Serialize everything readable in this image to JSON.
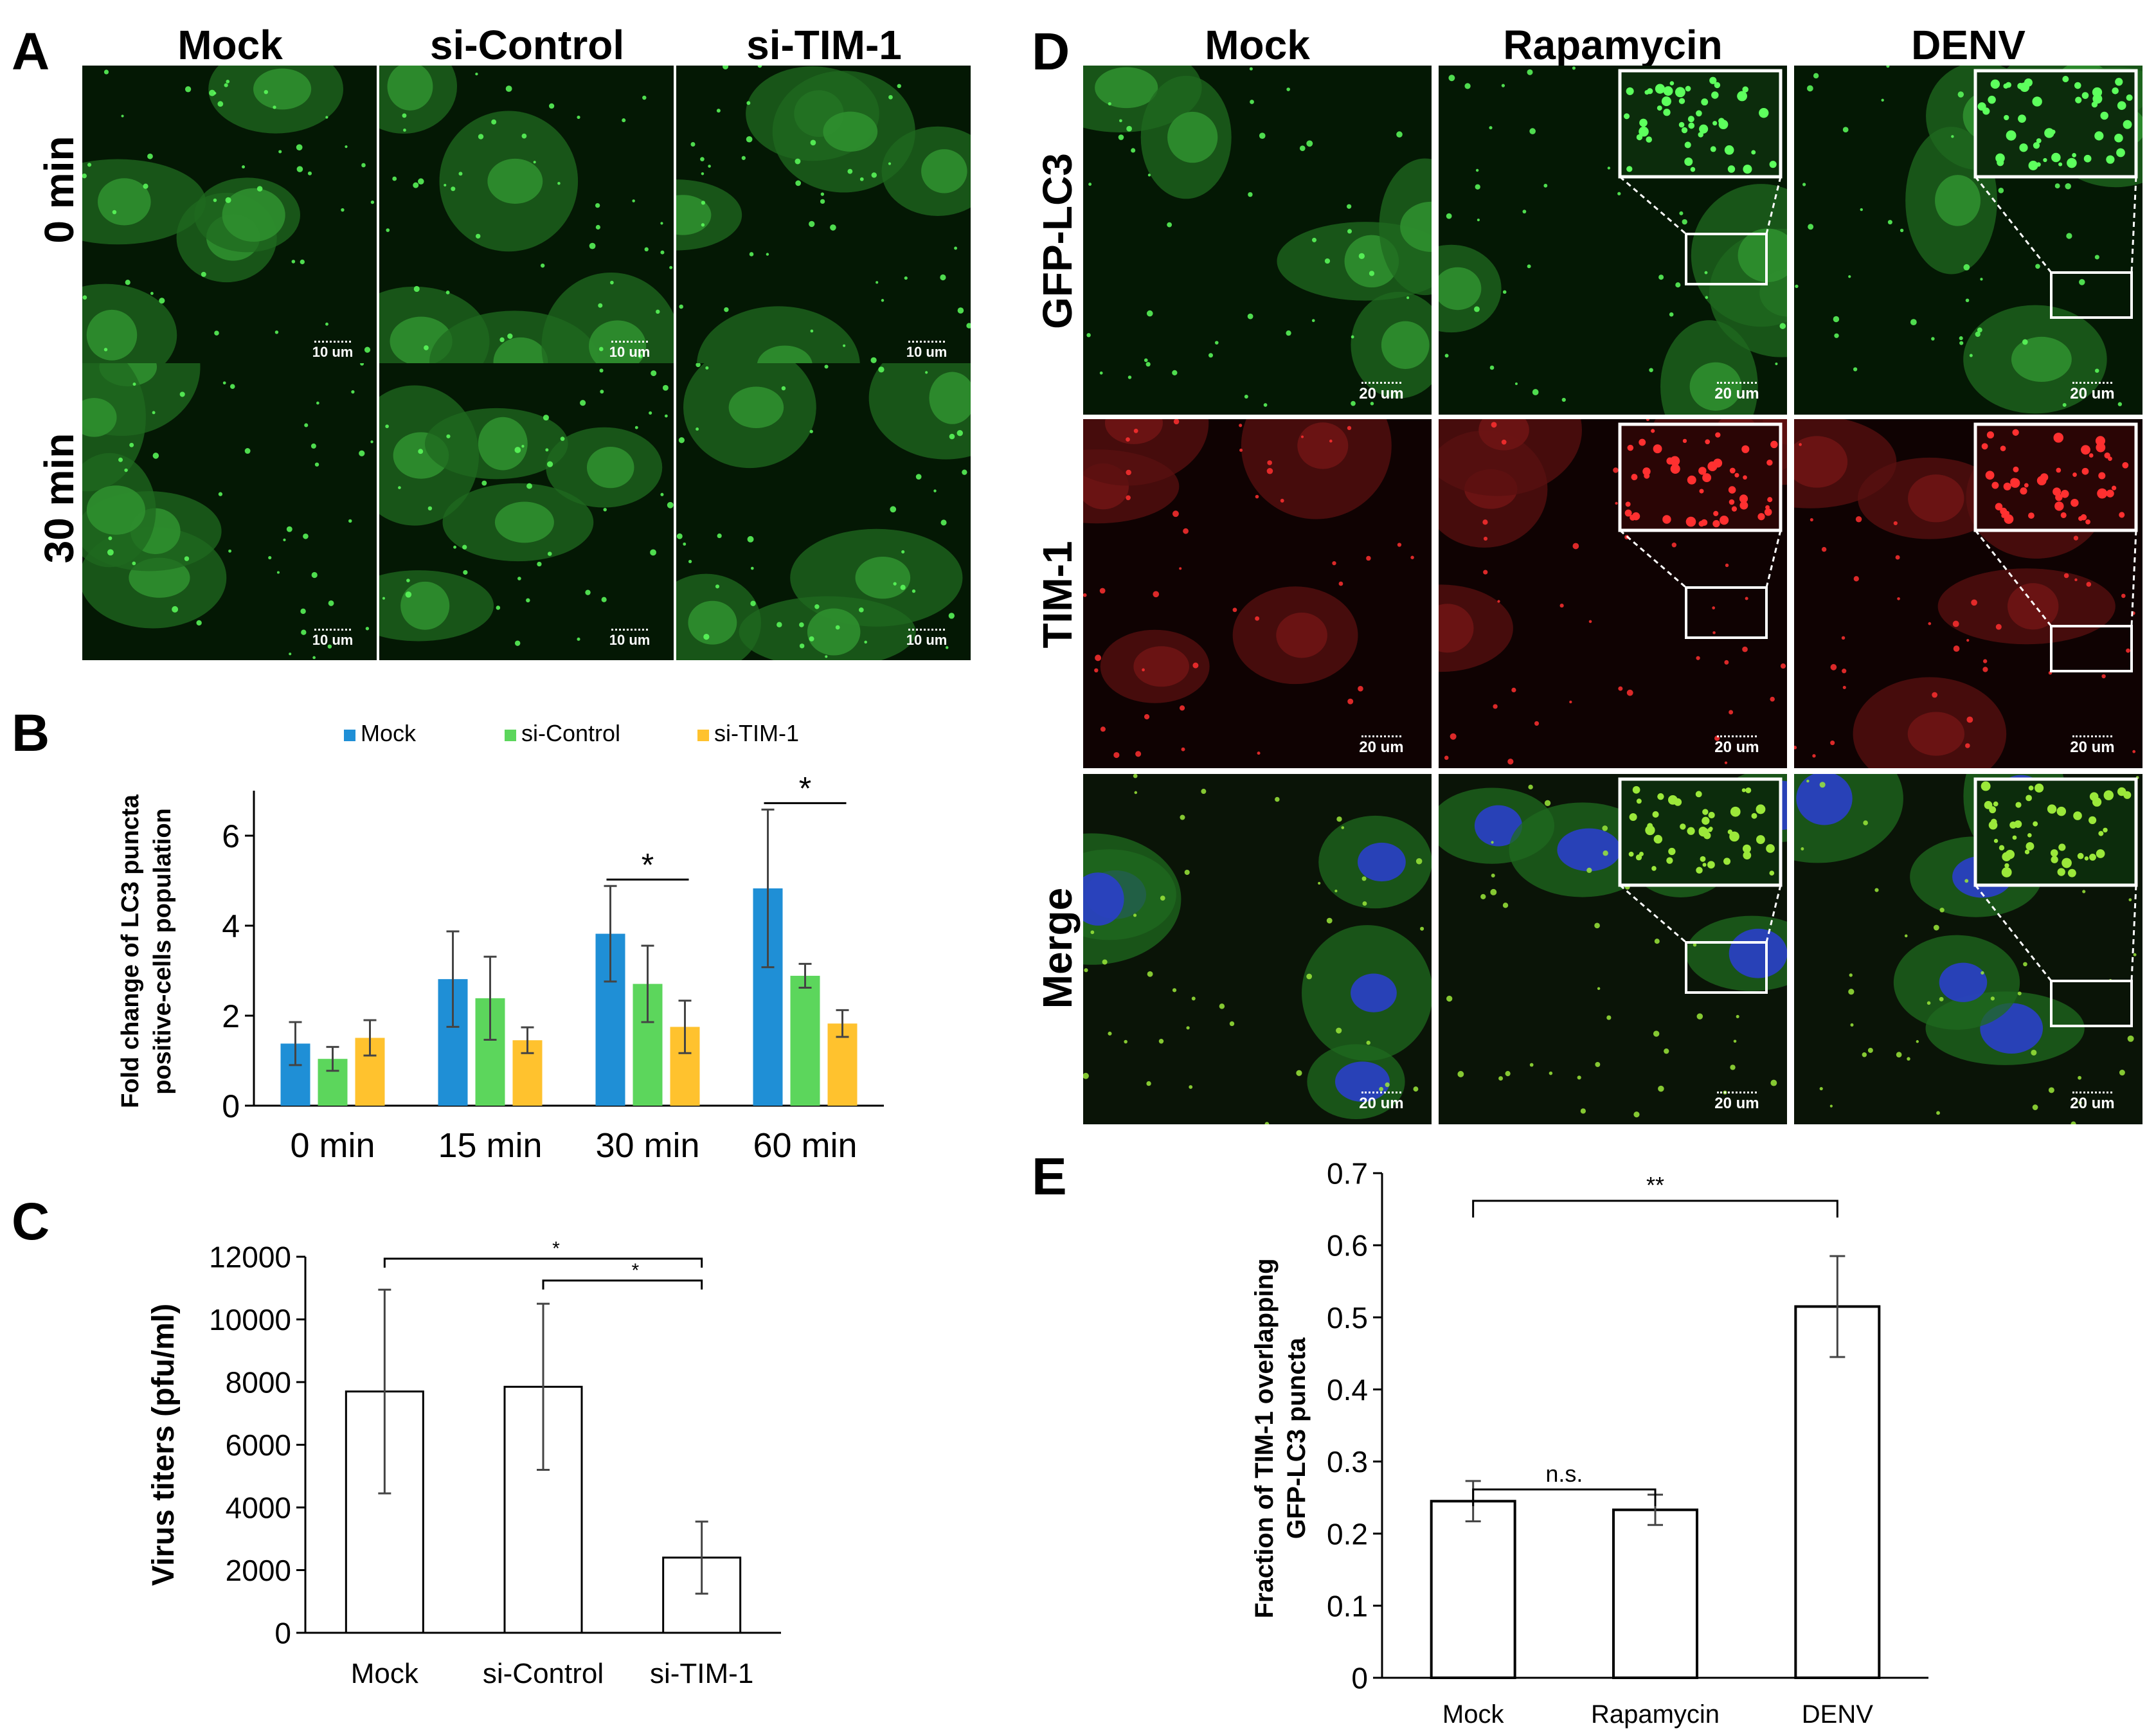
{
  "panelA": {
    "label": "A",
    "columns": [
      "Mock",
      "si-Control",
      "si-TIM-1"
    ],
    "rows": [
      "0 min",
      "30 min"
    ],
    "scale_bar": "10 um"
  },
  "panelD": {
    "label": "D",
    "columns": [
      "Mock",
      "Rapamycin",
      "DENV"
    ],
    "rows": [
      "GFP-LC3",
      "TIM-1",
      "Merge"
    ],
    "scale_bar": "20 um"
  },
  "colors": {
    "mock_series": "#1f8fd6",
    "control_series": "#5cd65c",
    "tim1_series": "#ffc22e"
  },
  "chart_data": [
    {
      "panel": "B",
      "type": "bar",
      "categories": [
        "0 min",
        "15 min",
        "30 min",
        "60 min"
      ],
      "series": [
        {
          "name": "Mock",
          "values": [
            1.3,
            2.65,
            3.6,
            4.55
          ],
          "errors": [
            0.45,
            1.0,
            1.0,
            1.65
          ]
        },
        {
          "name": "si-Control",
          "values": [
            0.98,
            2.25,
            2.55,
            2.72
          ],
          "errors": [
            0.25,
            0.87,
            0.8,
            0.25
          ]
        },
        {
          "name": "si-TIM-1",
          "values": [
            1.42,
            1.37,
            1.65,
            1.72
          ],
          "errors": [
            0.37,
            0.27,
            0.55,
            0.28
          ]
        }
      ],
      "ylabel": "Fold change of LC3 puncta positive-cells population",
      "ylim": [
        0,
        7
      ],
      "yticks": [
        "0",
        "2",
        "4",
        "6"
      ],
      "legend": "top",
      "significance": [
        {
          "category": "30 min",
          "label": "*"
        },
        {
          "category": "60 min",
          "label": "*"
        }
      ]
    },
    {
      "panel": "C",
      "type": "bar",
      "categories": [
        "Mock",
        "si-Control",
        "si-TIM-1"
      ],
      "values": [
        7700,
        7850,
        2400
      ],
      "errors": [
        3250,
        2650,
        1150
      ],
      "ylabel": "Virus titers (pfu/ml)",
      "ylim": [
        0,
        12000
      ],
      "yticks": [
        "0",
        "2000",
        "4000",
        "6000",
        "8000",
        "10000",
        "12000"
      ],
      "significance": [
        {
          "from": "Mock",
          "to": "si-TIM-1",
          "label": "*"
        },
        {
          "from": "si-Control",
          "to": "si-TIM-1",
          "label": "*"
        }
      ]
    },
    {
      "panel": "E",
      "type": "bar",
      "categories": [
        "Mock",
        "Rapamycin",
        "DENV"
      ],
      "values": [
        0.245,
        0.233,
        0.515
      ],
      "errors": [
        0.028,
        0.021,
        0.07
      ],
      "ylabel": "Fraction of TIM-1 overlapping GFP-LC3 puncta",
      "ylim": [
        0,
        0.7
      ],
      "yticks": [
        "0",
        "0.1",
        "0.2",
        "0.3",
        "0.4",
        "0.5",
        "0.6",
        "0.7"
      ],
      "significance": [
        {
          "from": "Mock",
          "to": "Rapamycin",
          "label": "n.s."
        },
        {
          "from": "Mock",
          "to": "DENV",
          "label": "**"
        }
      ]
    }
  ]
}
